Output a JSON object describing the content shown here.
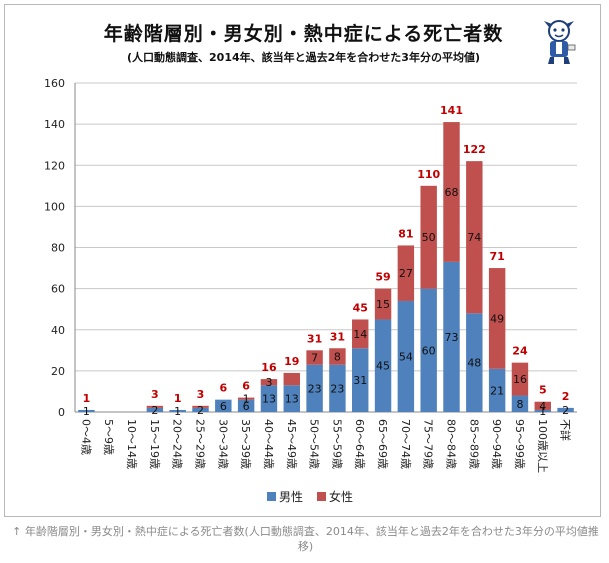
{
  "header": {
    "title": "年齢階層別・男女別・熱中症による死亡者数",
    "subtitle": "(人口動態調査、2014年、該当年と過去2年を合わせた3年分の平均値)"
  },
  "caption": "↑ 年齢階層別・男女別・熱中症による死亡者数(人口動態調査、2014年、該当年と過去2年を合わせた3年分の平均値推移)",
  "chart_data": {
    "type": "bar",
    "stacked": true,
    "categories": [
      "0〜4歳",
      "5〜9歳",
      "10〜14歳",
      "15〜19歳",
      "20〜24歳",
      "25〜29歳",
      "30〜34歳",
      "35〜39歳",
      "40〜44歳",
      "45〜49歳",
      "50〜54歳",
      "55〜59歳",
      "60〜64歳",
      "65〜69歳",
      "70〜74歳",
      "75〜79歳",
      "80〜84歳",
      "85〜89歳",
      "90〜94歳",
      "95〜99歳",
      "100歳以上",
      "不詳"
    ],
    "series": [
      {
        "name": "男性",
        "color": "#4f81bd",
        "values": [
          1,
          0,
          0,
          2,
          1,
          2,
          6,
          6,
          13,
          13,
          23,
          23,
          31,
          45,
          54,
          60,
          73,
          48,
          21,
          8,
          1,
          2
        ]
      },
      {
        "name": "女性",
        "color": "#c0504d",
        "values": [
          0,
          0,
          0,
          1,
          0,
          1,
          0,
          1,
          3,
          6,
          7,
          8,
          14,
          15,
          27,
          50,
          68,
          74,
          49,
          16,
          4,
          0
        ]
      }
    ],
    "value_labels": {
      "male": [
        "1",
        "",
        "",
        "2",
        "1",
        "2",
        "6",
        "6",
        "13",
        "13",
        "23",
        "23",
        "31",
        "45",
        "54",
        "60",
        "73",
        "48",
        "21",
        "8",
        "1",
        "2"
      ],
      "female": [
        "",
        "",
        "",
        "",
        "",
        "",
        "",
        "1",
        "3",
        "",
        "7",
        "8",
        "14",
        "15",
        "27",
        "50",
        "68",
        "74",
        "49",
        "16",
        "4",
        ""
      ]
    },
    "totals": [
      1,
      null,
      null,
      3,
      1,
      3,
      6,
      6,
      16,
      19,
      31,
      31,
      45,
      59,
      81,
      110,
      141,
      122,
      71,
      24,
      5,
      2
    ],
    "ylim": [
      0,
      160
    ],
    "yticks": [
      0,
      20,
      40,
      60,
      80,
      100,
      120,
      140,
      160
    ],
    "grid": true,
    "legend_position": "bottom"
  }
}
